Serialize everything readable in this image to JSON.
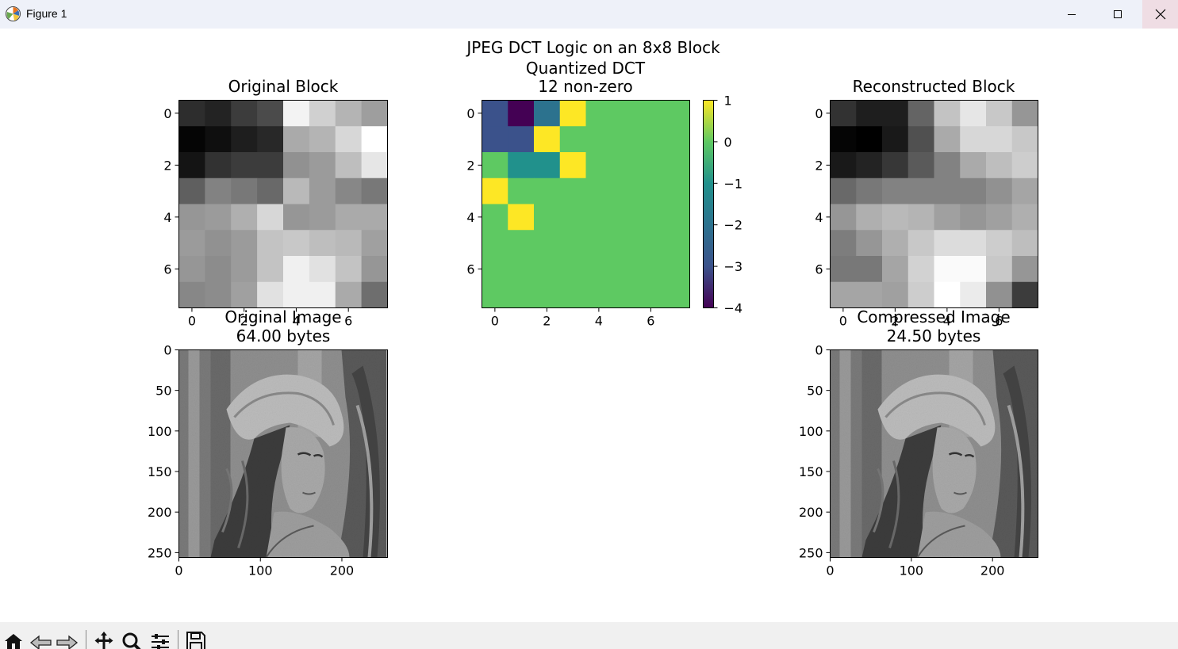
{
  "window": {
    "title": "Figure 1",
    "icons": [
      "matplotlib-icon",
      "minimize-icon",
      "maximize-icon",
      "close-icon"
    ]
  },
  "figure": {
    "suptitle": "JPEG DCT Logic on an 8x8 Block",
    "original_block": {
      "title": "Original Block",
      "xticks": [
        "0",
        "2",
        "4",
        "6"
      ],
      "yticks": [
        "0",
        "2",
        "4",
        "6"
      ],
      "pixels": [
        [
          45,
          35,
          60,
          75,
          243,
          208,
          180,
          158
        ],
        [
          5,
          15,
          30,
          40,
          170,
          180,
          215,
          255
        ],
        [
          20,
          50,
          60,
          60,
          145,
          155,
          190,
          230
        ],
        [
          95,
          130,
          120,
          105,
          185,
          155,
          135,
          120
        ],
        [
          150,
          155,
          175,
          215,
          150,
          155,
          170,
          170
        ],
        [
          155,
          145,
          155,
          195,
          200,
          190,
          185,
          160
        ],
        [
          150,
          140,
          155,
          195,
          240,
          225,
          195,
          150
        ],
        [
          135,
          140,
          160,
          225,
          240,
          240,
          170,
          110
        ]
      ]
    },
    "quantized_dct": {
      "title_line1": "Quantized DCT",
      "title_line2": "12 non-zero",
      "xticks": [
        "0",
        "2",
        "4",
        "6"
      ],
      "yticks": [
        "0",
        "2",
        "4",
        "6"
      ],
      "colorbar_ticks": [
        "1",
        "0",
        "−1",
        "−2",
        "−3",
        "−4"
      ],
      "vmin": -4,
      "vmax": 1,
      "colormap": "viridis",
      "coefficients": [
        [
          -3,
          -4,
          -2,
          1,
          0,
          0,
          0,
          0
        ],
        [
          -3,
          -3,
          1,
          0,
          0,
          0,
          0,
          0
        ],
        [
          0,
          -1,
          -1,
          1,
          0,
          0,
          0,
          0
        ],
        [
          1,
          0,
          0,
          0,
          0,
          0,
          0,
          0
        ],
        [
          0,
          1,
          0,
          0,
          0,
          0,
          0,
          0
        ],
        [
          0,
          0,
          0,
          0,
          0,
          0,
          0,
          0
        ],
        [
          0,
          0,
          0,
          0,
          0,
          0,
          0,
          0
        ],
        [
          0,
          0,
          0,
          0,
          0,
          0,
          0,
          0
        ]
      ]
    },
    "reconstructed_block": {
      "title": "Reconstructed Block",
      "xticks": [
        "0",
        "2",
        "4",
        "6"
      ],
      "yticks": [
        "0",
        "2",
        "4",
        "6"
      ],
      "pixels": [
        [
          50,
          30,
          30,
          100,
          195,
          230,
          200,
          150
        ],
        [
          5,
          0,
          25,
          80,
          170,
          215,
          215,
          200
        ],
        [
          25,
          35,
          55,
          90,
          130,
          170,
          190,
          205
        ],
        [
          105,
          120,
          130,
          130,
          130,
          130,
          145,
          165
        ],
        [
          150,
          175,
          185,
          180,
          160,
          150,
          160,
          175
        ],
        [
          125,
          150,
          175,
          200,
          220,
          220,
          205,
          190
        ],
        [
          120,
          120,
          165,
          210,
          250,
          250,
          200,
          150
        ],
        [
          165,
          165,
          160,
          205,
          255,
          235,
          145,
          60
        ]
      ]
    },
    "original_image": {
      "title_line1": "Original Image",
      "title_line2": "64.00 bytes",
      "xticks": [
        "0",
        "100",
        "200"
      ],
      "yticks": [
        "0",
        "50",
        "100",
        "150",
        "200",
        "250"
      ]
    },
    "compressed_image": {
      "title_line1": "Compressed Image",
      "title_line2": "24.50 bytes",
      "xticks": [
        "0",
        "100",
        "200"
      ],
      "yticks": [
        "0",
        "50",
        "100",
        "150",
        "200",
        "250"
      ]
    }
  },
  "toolbar": {
    "icons": [
      "home-icon",
      "back-icon",
      "forward-icon",
      "pan-icon",
      "zoom-icon",
      "configure-subplots-icon",
      "save-icon"
    ]
  }
}
